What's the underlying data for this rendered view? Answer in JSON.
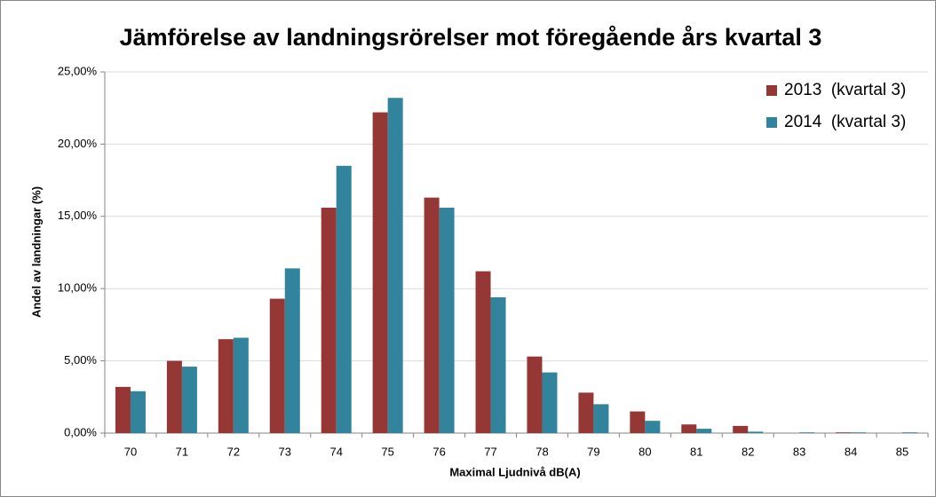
{
  "chart_data": {
    "type": "bar",
    "title": "Jämförelse av landningsrörelser mot föregående års kvartal 3",
    "x_label": "Maximal Ljudnivå dB(A)",
    "y_label": "Andel av landningar (%)",
    "categories": [
      "70",
      "71",
      "72",
      "73",
      "74",
      "75",
      "76",
      "77",
      "78",
      "79",
      "80",
      "81",
      "82",
      "83",
      "84",
      "85"
    ],
    "series": [
      {
        "name": "2013  (kvartal 3)",
        "color": "#953735",
        "values": [
          3.2,
          5.0,
          6.5,
          9.3,
          15.6,
          22.2,
          16.3,
          11.2,
          5.3,
          2.8,
          1.5,
          0.6,
          0.5,
          0,
          0.05,
          0
        ]
      },
      {
        "name": "2014  (kvartal 3)",
        "color": "#31849b",
        "values": [
          2.9,
          4.6,
          6.6,
          11.4,
          18.5,
          23.2,
          15.6,
          9.4,
          4.2,
          2.0,
          0.85,
          0.3,
          0.1,
          0.05,
          0.05,
          0.05
        ]
      }
    ],
    "ylim": [
      0,
      25
    ],
    "yticks": [
      {
        "value": 0,
        "label": "0,00%"
      },
      {
        "value": 5,
        "label": "5,00%"
      },
      {
        "value": 10,
        "label": "10,00%"
      },
      {
        "value": 15,
        "label": "15,00%"
      },
      {
        "value": 20,
        "label": "20,00%"
      },
      {
        "value": 25,
        "label": "25,00%"
      }
    ],
    "grid": true,
    "legend": "top-right"
  }
}
